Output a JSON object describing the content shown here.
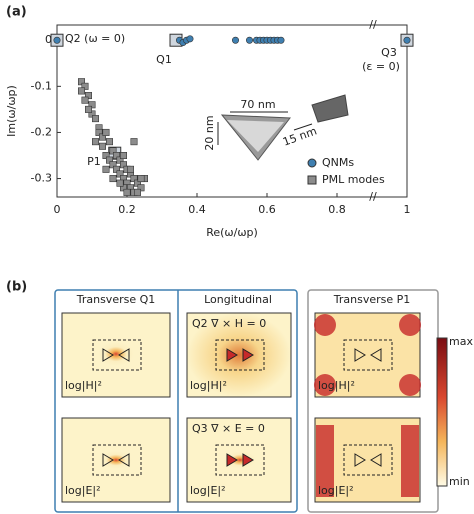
{
  "panel_labels": [
    "(a)",
    "(b)"
  ],
  "chart_data": {
    "type": "scatter",
    "xlabel": "Re(ω/ωp)",
    "ylabel": "Im(ω/ωp)",
    "xlim": [
      0,
      1
    ],
    "ylim": [
      -0.34,
      0.033
    ],
    "xticks": [
      0,
      0.2,
      0.4,
      0.6,
      0.8,
      1
    ],
    "yticks": [
      0,
      -0.1,
      -0.2,
      -0.3
    ],
    "legend": "lower right",
    "series": [
      {
        "name": "QNMs",
        "color": "#3f7fb0",
        "marker": "circle",
        "x": [
          0,
          0.35,
          0.36,
          0.37,
          0.38,
          0.51,
          0.55,
          0.57,
          0.58,
          0.59,
          0.6,
          0.61,
          0.62,
          0.63,
          0.64,
          1
        ],
        "values": [
          0,
          0,
          -0.005,
          0,
          0.003,
          0,
          0,
          0,
          0,
          0,
          0,
          0,
          0,
          0,
          0,
          0
        ]
      },
      {
        "name": "PML modes",
        "color": "#8c8c8c",
        "marker": "square",
        "x": [
          0.07,
          0.08,
          0.07,
          0.09,
          0.08,
          0.1,
          0.1,
          0.11,
          0.09,
          0.12,
          0.12,
          0.13,
          0.11,
          0.14,
          0.13,
          0.15,
          0.14,
          0.16,
          0.15,
          0.17,
          0.16,
          0.18,
          0.14,
          0.17,
          0.19,
          0.18,
          0.2,
          0.19,
          0.21,
          0.2,
          0.22,
          0.21,
          0.23,
          0.19,
          0.22,
          0.24,
          0.2,
          0.23,
          0.25,
          0.18,
          0.21,
          0.24,
          0.16,
          0.19,
          0.22
        ],
        "values": [
          -0.09,
          -0.1,
          -0.11,
          -0.12,
          -0.13,
          -0.14,
          -0.16,
          -0.17,
          -0.15,
          -0.19,
          -0.2,
          -0.21,
          -0.22,
          -0.2,
          -0.23,
          -0.22,
          -0.25,
          -0.24,
          -0.26,
          -0.25,
          -0.27,
          -0.26,
          -0.28,
          -0.28,
          -0.27,
          -0.29,
          -0.28,
          -0.3,
          -0.29,
          -0.31,
          -0.3,
          -0.32,
          -0.31,
          -0.32,
          -0.33,
          -0.32,
          -0.33,
          -0.33,
          -0.3,
          -0.31,
          -0.28,
          -0.3,
          -0.3,
          -0.25,
          -0.22
        ]
      }
    ],
    "highlights": [
      {
        "label": "Q2 (ω = 0)",
        "x": 0,
        "y": 0
      },
      {
        "label": "Q1",
        "x": 0.34,
        "y": 0
      },
      {
        "label": "Q3",
        "note": "(ε = 0)",
        "x": 1,
        "y": 0
      },
      {
        "label": "P1",
        "x": 0.165,
        "y": -0.245
      }
    ],
    "dimension_labels": [
      "70 nm",
      "20 nm",
      "15 nm"
    ]
  },
  "panel_b": {
    "headings": [
      "Transverse Q1",
      "Longitudinal",
      "Transverse P1"
    ],
    "mode_labels": [
      "Q2 ∇ × H = 0",
      "Q3 ∇ × E = 0"
    ],
    "field_labels": [
      "log|H|²",
      "log|E|²"
    ],
    "colorbar": [
      "max",
      "min"
    ]
  }
}
